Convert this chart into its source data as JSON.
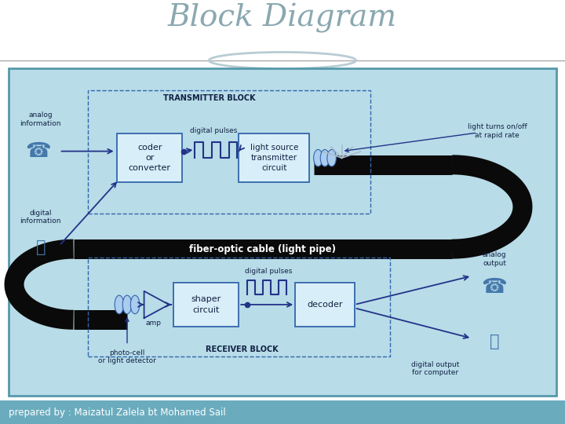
{
  "title": "Block Diagram",
  "title_color": "#8aa8b0",
  "footer_text": "prepared by : Maizatul Zalela bt Mohamed Sail",
  "footer_bg": "#6aacbe",
  "footer_text_color": "#ffffff",
  "main_bg": "#b8dce8",
  "outer_bg": "#ffffff",
  "border_color": "#5599aa",
  "transmitter_label": "TRANSMITTER BLOCK",
  "receiver_label": "RECEIVER BLOCK",
  "fiber_label": "fiber-optic cable (light pipe)",
  "cable_color": "#0a0a0a",
  "block_bg": "#d8eef8",
  "block_ec": "#3366aa",
  "arrow_color": "#223388",
  "text_color": "#112244"
}
